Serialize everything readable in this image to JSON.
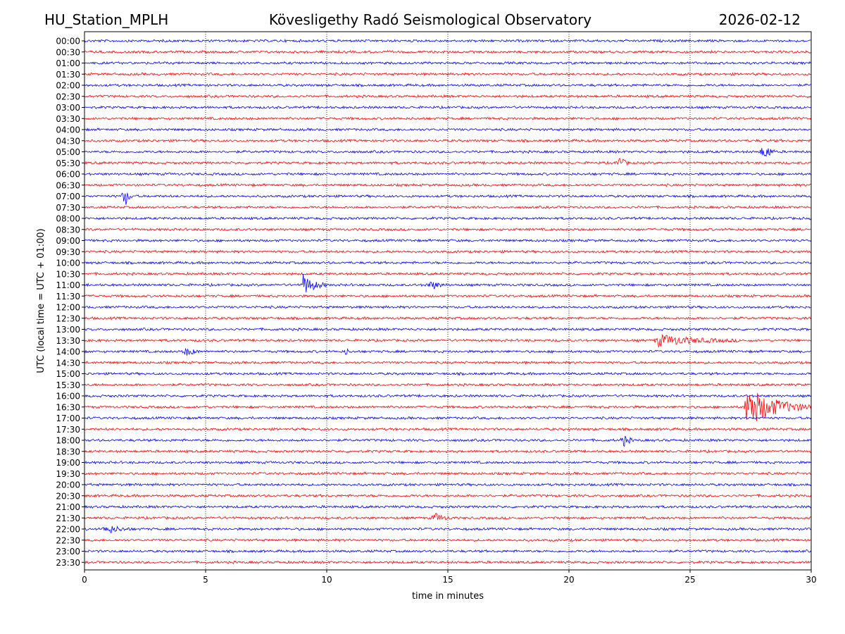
{
  "header": {
    "station": "HU_Station_MPLH",
    "observatory": "Kövesligethy Radó Seismological Observatory",
    "date": "2026-02-12"
  },
  "colors": {
    "even_trace": "#0000ff",
    "odd_trace": "#ff0000",
    "axis": "#000000",
    "grid": "#000000"
  },
  "chart_data": {
    "type": "line",
    "title": "Kövesligethy Radó Seismological Observatory",
    "xlabel": "time in minutes",
    "ylabel": "UTC (local time = UTC + 01:00)",
    "xlim": [
      0,
      30
    ],
    "x_ticks": [
      "0",
      "5",
      "10",
      "15",
      "20",
      "25",
      "30"
    ],
    "grid": "vertical dotted at x ticks",
    "row_labels": [
      "00:00",
      "00:30",
      "01:00",
      "01:30",
      "02:00",
      "02:30",
      "03:00",
      "03:30",
      "04:00",
      "04:30",
      "05:00",
      "05:30",
      "06:00",
      "06:30",
      "07:00",
      "07:30",
      "08:00",
      "08:30",
      "09:00",
      "09:30",
      "10:00",
      "10:30",
      "11:00",
      "11:30",
      "12:00",
      "12:30",
      "13:00",
      "13:30",
      "14:00",
      "14:30",
      "15:00",
      "15:30",
      "16:00",
      "16:30",
      "17:00",
      "17:30",
      "18:00",
      "18:30",
      "19:00",
      "19:30",
      "20:00",
      "20:30",
      "21:00",
      "21:30",
      "22:00",
      "22:30",
      "23:00",
      "23:30"
    ],
    "events": [
      {
        "row": "05:00",
        "start_min": 27.8,
        "peak_min": 28.2,
        "end_min": 28.5,
        "amplitude": 2.6
      },
      {
        "row": "05:30",
        "start_min": 21.9,
        "peak_min": 22.1,
        "end_min": 22.5,
        "amplitude": 2.2
      },
      {
        "row": "07:00",
        "start_min": 1.5,
        "peak_min": 1.7,
        "end_min": 2.0,
        "amplitude": 3.2
      },
      {
        "row": "11:00",
        "start_min": 9.0,
        "peak_min": 9.0,
        "end_min": 10.0,
        "amplitude": 4.0
      },
      {
        "row": "11:00",
        "start_min": 14.0,
        "peak_min": 14.4,
        "end_min": 15.0,
        "amplitude": 1.2
      },
      {
        "row": "13:30",
        "start_min": 23.5,
        "peak_min": 23.7,
        "end_min": 27.0,
        "amplitude": 2.0
      },
      {
        "row": "14:00",
        "start_min": 4.0,
        "peak_min": 4.3,
        "end_min": 4.8,
        "amplitude": 1.4
      },
      {
        "row": "14:00",
        "start_min": 10.7,
        "peak_min": 10.8,
        "end_min": 11.0,
        "amplitude": 1.2
      },
      {
        "row": "16:30",
        "start_min": 27.2,
        "peak_min": 27.4,
        "end_min": 30.0,
        "amplitude": 7.0
      },
      {
        "row": "18:00",
        "start_min": 22.1,
        "peak_min": 22.3,
        "end_min": 22.7,
        "amplitude": 2.0
      },
      {
        "row": "21:30",
        "start_min": 14.3,
        "peak_min": 14.5,
        "end_min": 15.2,
        "amplitude": 1.5
      },
      {
        "row": "22:00",
        "start_min": 0.7,
        "peak_min": 1.0,
        "end_min": 2.0,
        "amplitude": 1.4
      }
    ]
  }
}
